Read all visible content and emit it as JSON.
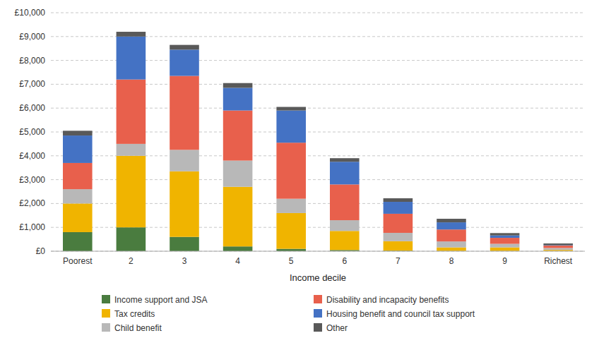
{
  "chart_data": {
    "type": "bar",
    "stacked": true,
    "x_label": "Income decile",
    "categories": [
      "Poorest",
      "2",
      "3",
      "4",
      "5",
      "6",
      "7",
      "8",
      "9",
      "Richest"
    ],
    "series": [
      {
        "name": "Income support and JSA",
        "color": "#4a7c3f",
        "values": [
          800,
          1000,
          600,
          200,
          100,
          50,
          20,
          10,
          10,
          5
        ]
      },
      {
        "name": "Tax credits",
        "color": "#f0b400",
        "values": [
          1200,
          3000,
          2750,
          2500,
          1500,
          800,
          400,
          150,
          150,
          50
        ]
      },
      {
        "name": "Child benefit",
        "color": "#b8b8b8",
        "values": [
          600,
          500,
          900,
          1100,
          600,
          450,
          350,
          250,
          150,
          80
        ]
      },
      {
        "name": "Disability and incapacity benefits",
        "color": "#e8604c",
        "values": [
          1100,
          2700,
          3100,
          2100,
          2350,
          1500,
          800,
          500,
          250,
          100
        ]
      },
      {
        "name": "Housing benefit and council tax support",
        "color": "#4472c4",
        "values": [
          1150,
          1800,
          1100,
          950,
          1350,
          950,
          500,
          300,
          100,
          20
        ]
      },
      {
        "name": "Other",
        "color": "#595959",
        "values": [
          200,
          200,
          200,
          200,
          150,
          150,
          150,
          150,
          100,
          70
        ]
      }
    ],
    "ylim": [
      0,
      10000
    ],
    "yticks": [
      {
        "value": 0,
        "label": "£0"
      },
      {
        "value": 1000,
        "label": "£1,000"
      },
      {
        "value": 2000,
        "label": "£2,000"
      },
      {
        "value": 3000,
        "label": "£3,000"
      },
      {
        "value": 4000,
        "label": "£4,000"
      },
      {
        "value": 5000,
        "label": "£5,000"
      },
      {
        "value": 6000,
        "label": "£6,000"
      },
      {
        "value": 7000,
        "label": "£7,000"
      },
      {
        "value": 8000,
        "label": "£8,000"
      },
      {
        "value": 9000,
        "label": "£9,000"
      },
      {
        "value": 10000,
        "label": "£10,000"
      }
    ],
    "grid": true,
    "legend": "bottom"
  }
}
